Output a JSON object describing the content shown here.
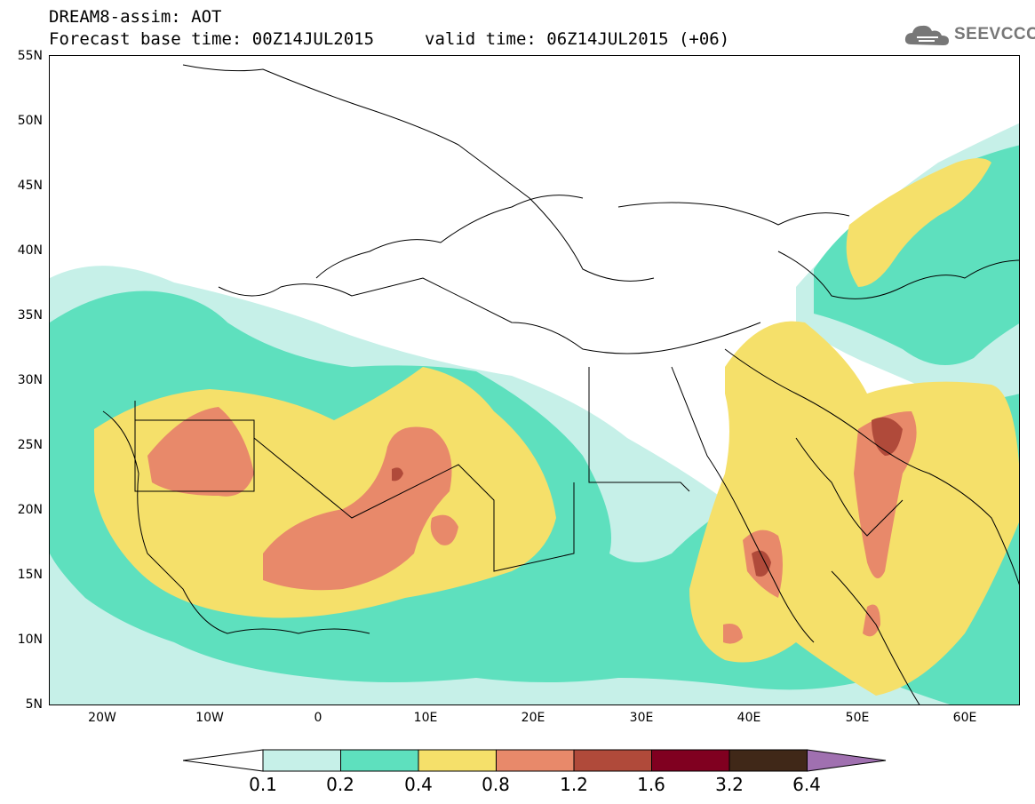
{
  "header": {
    "line1": "DREAM8-assim: AOT",
    "line2": "Forecast base time: 00Z14JUL2015",
    "valid": "valid time: 06Z14JUL2015 (+06)",
    "logo_text": "SEEVCCC"
  },
  "map": {
    "lat_labels": [
      "55N",
      "50N",
      "45N",
      "40N",
      "35N",
      "30N",
      "25N",
      "20N",
      "15N",
      "10N",
      "5N"
    ],
    "lon_labels": [
      "20W",
      "10W",
      "0",
      "10E",
      "20E",
      "30E",
      "40E",
      "50E",
      "60E"
    ],
    "lon_range": [
      -25,
      65
    ],
    "lat_range": [
      5,
      55
    ]
  },
  "colorbar": {
    "labels": [
      "0.1",
      "0.2",
      "0.4",
      "0.8",
      "1.2",
      "1.6",
      "3.2",
      "6.4"
    ],
    "colors": [
      "#ffffff",
      "#c6f0e8",
      "#5ee0be",
      "#f5e06a",
      "#e8896a",
      "#b04a3a",
      "#800020",
      "#402818",
      "#a070b0"
    ]
  },
  "colors": {
    "level1": "#c6f0e8",
    "level2": "#5ee0be",
    "level3": "#f5e06a",
    "level4": "#e8896a",
    "level5": "#b04a3a",
    "level6": "#800020"
  }
}
